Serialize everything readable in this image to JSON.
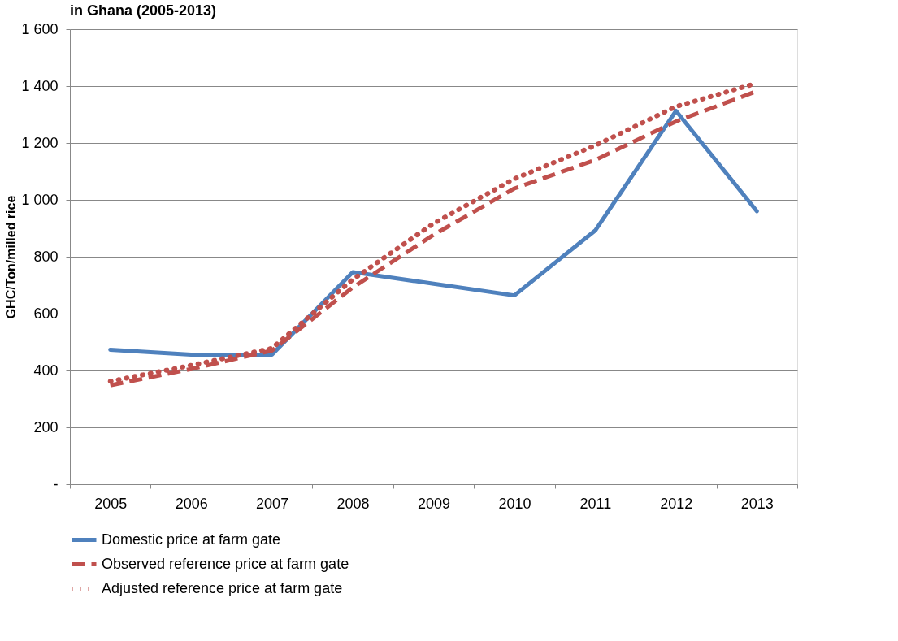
{
  "chart_data": {
    "type": "line",
    "title": "in Ghana (2005-2013)",
    "ylabel": "GHC/Ton/milled rice",
    "categories": [
      "2005",
      "2006",
      "2007",
      "2008",
      "2009",
      "2010",
      "2011",
      "2012",
      "2013"
    ],
    "series": [
      {
        "name": "Domestic price at farm gate",
        "color": "#4f81bd",
        "line_style": "solid",
        "values": [
          473,
          456,
          456,
          746,
          705,
          664,
          892,
          1313,
          960
        ]
      },
      {
        "name": "Observed reference price at farm gate",
        "color": "#c0504d",
        "line_style": "dashed",
        "values": [
          348,
          405,
          470,
          692,
          877,
          1040,
          1140,
          1276,
          1382
        ]
      },
      {
        "name": "Adjusted reference price at farm gate",
        "color": "#c0504d",
        "line_style": "dotted",
        "values": [
          362,
          418,
          478,
          720,
          917,
          1074,
          1191,
          1328,
          1410
        ]
      }
    ],
    "ylim": [
      0,
      1600
    ],
    "yticks": [
      {
        "value": 0,
        "label": "-"
      },
      {
        "value": 200,
        "label": "200"
      },
      {
        "value": 400,
        "label": "400"
      },
      {
        "value": 600,
        "label": "600"
      },
      {
        "value": 800,
        "label": "800"
      },
      {
        "value": 1000,
        "label": "1 000"
      },
      {
        "value": 1200,
        "label": "1 200"
      },
      {
        "value": 1400,
        "label": "1 400"
      },
      {
        "value": 1600,
        "label": "1 600"
      }
    ],
    "grid": "y",
    "legend": "bottom",
    "marker": "none"
  }
}
